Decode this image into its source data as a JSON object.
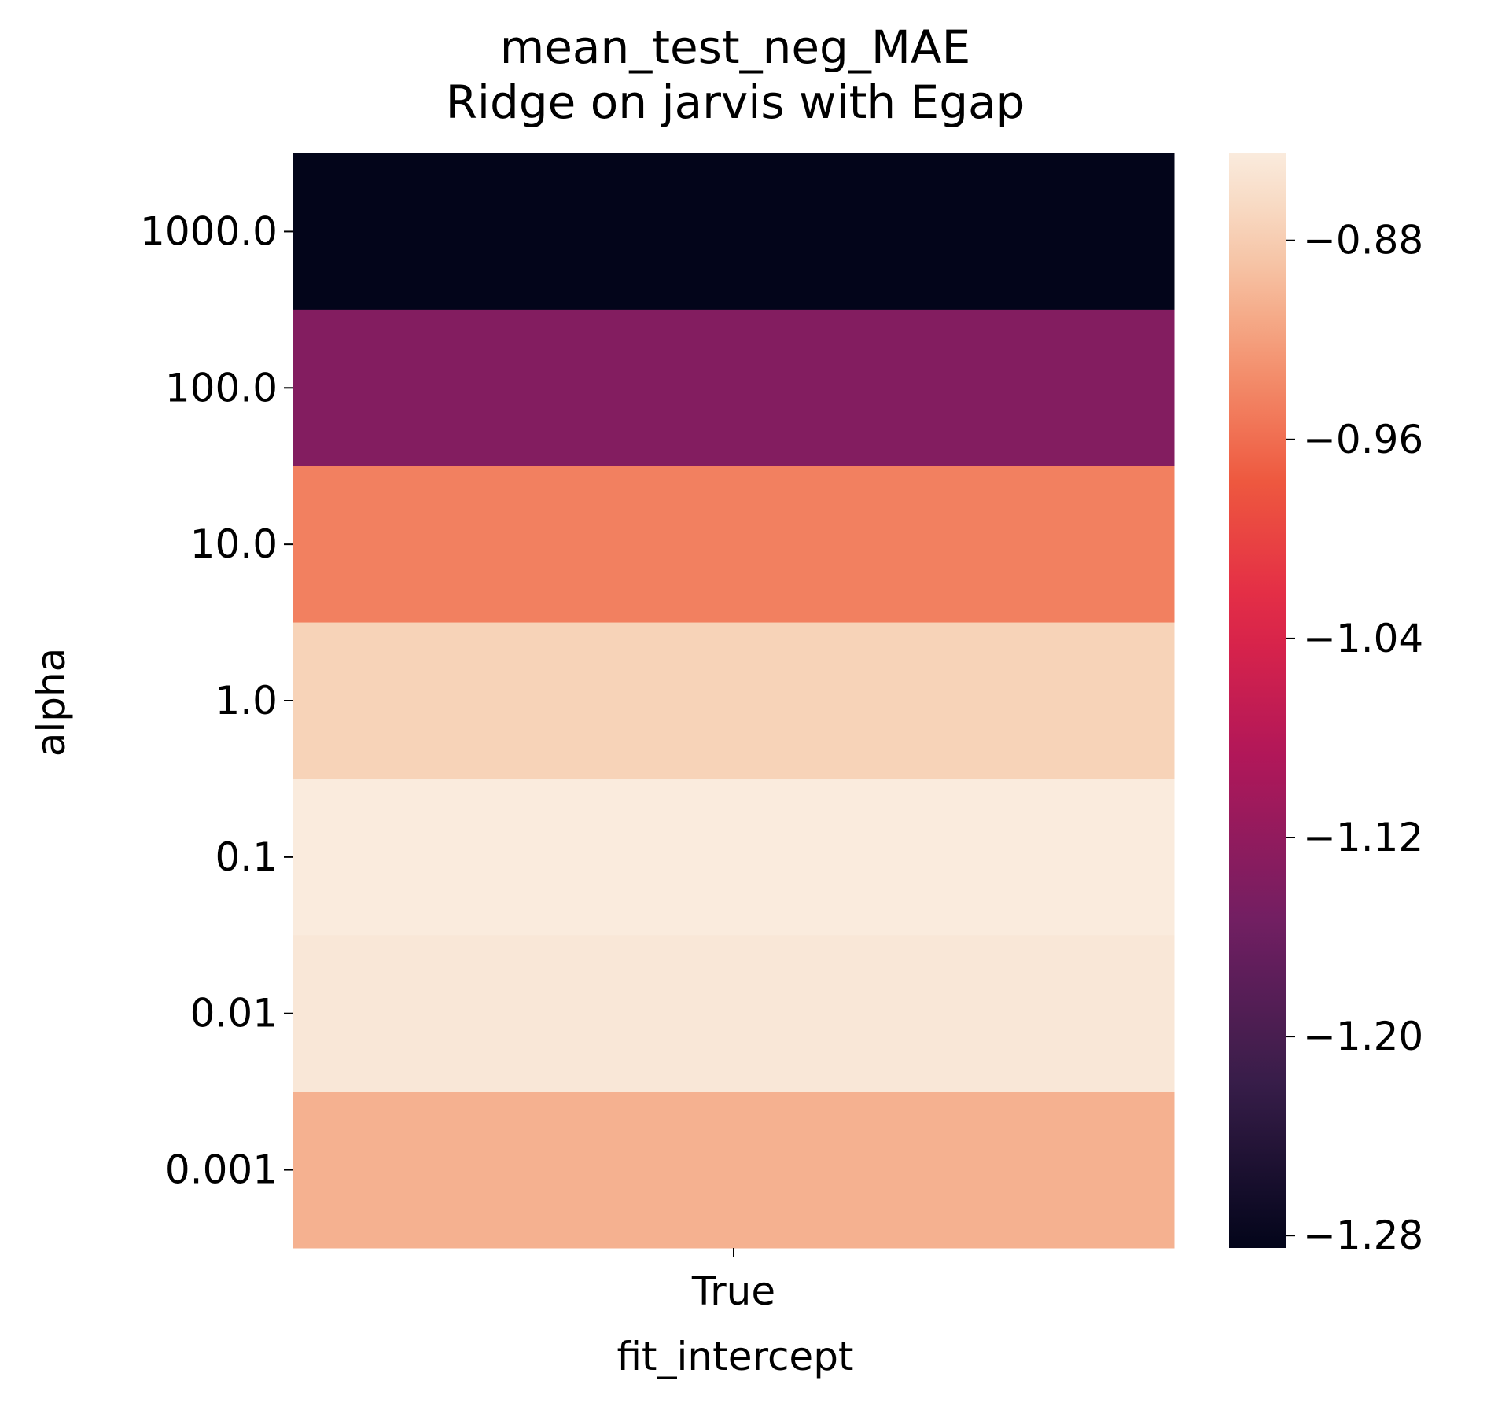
{
  "chart_data": {
    "type": "heatmap",
    "title": "mean_test_neg_MAE",
    "subtitle": "Ridge on jarvis with Egap",
    "xlabel": "fit_intercept",
    "ylabel": "alpha",
    "x_categories": [
      "True"
    ],
    "y_categories": [
      "1000.0",
      "100.0",
      "10.0",
      "1.0",
      "0.1",
      "0.01",
      "0.001"
    ],
    "values": [
      [
        -1.285
      ],
      [
        -1.135
      ],
      [
        -0.945
      ],
      [
        -0.875
      ],
      [
        -0.845
      ],
      [
        -0.85
      ],
      [
        -0.905
      ]
    ],
    "colorbar": {
      "vmin": -1.285,
      "vmax": -0.845,
      "ticks": [
        -0.88,
        -0.96,
        -1.04,
        -1.12,
        -1.2,
        -1.28
      ],
      "tick_labels": [
        "−0.88",
        "−0.96",
        "−1.04",
        "−1.12",
        "−1.20",
        "−1.28"
      ],
      "colormap": "rocket"
    },
    "grid": false,
    "legend": "none"
  }
}
